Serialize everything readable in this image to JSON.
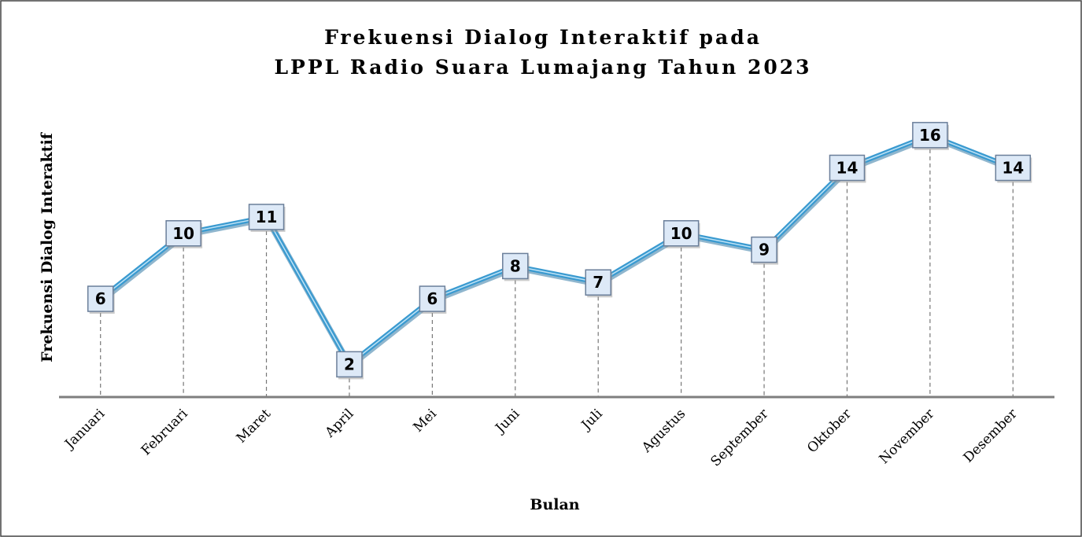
{
  "chart_data": {
    "type": "line",
    "title": [
      "Frekuensi Dialog Interaktif pada",
      "LPPL Radio Suara Lumajang Tahun 2023"
    ],
    "x_label": "Bulan",
    "y_label": "Frekuensi Dialog Interaktif",
    "categories": [
      "Januari",
      "Februari",
      "Maret",
      "April",
      "Mei",
      "Juni",
      "Juli",
      "Agustus",
      "September",
      "Oktober",
      "November",
      "Desember"
    ],
    "series": [
      {
        "name": "Frekuensi Dialog Interaktif",
        "color": "#3a9ad0",
        "values": [
          6,
          10,
          11,
          2,
          6,
          8,
          7,
          10,
          9,
          14,
          16,
          14
        ]
      }
    ],
    "ylim": [
      0,
      17
    ],
    "drop_lines": true,
    "legend": false
  }
}
